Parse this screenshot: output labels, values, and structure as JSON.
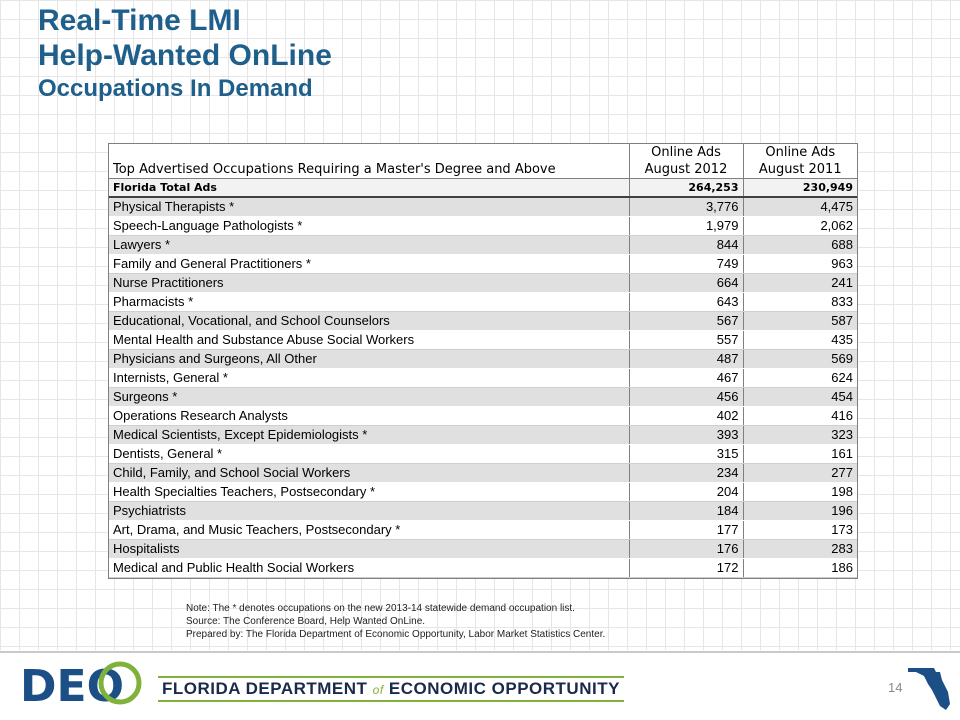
{
  "titles": {
    "line1": "Real-Time LMI",
    "line2": "Help-Wanted OnLine",
    "line3": "Occupations In Demand"
  },
  "table": {
    "header_label": "Top Advertised Occupations Requiring a Master's Degree and Above",
    "col2_line1": "Online Ads",
    "col2_line2": "August 2012",
    "col3_line1": "Online Ads",
    "col3_line2": "August 2011",
    "total": {
      "label": "Florida Total Ads",
      "v2012": "264,253",
      "v2011": "230,949"
    },
    "rows": [
      {
        "occupation": "Physical Therapists *",
        "v2012": "3,776",
        "v2011": "4,475"
      },
      {
        "occupation": "Speech-Language Pathologists *",
        "v2012": "1,979",
        "v2011": "2,062"
      },
      {
        "occupation": "Lawyers *",
        "v2012": "844",
        "v2011": "688"
      },
      {
        "occupation": "Family and General Practitioners *",
        "v2012": "749",
        "v2011": "963"
      },
      {
        "occupation": "Nurse Practitioners",
        "v2012": "664",
        "v2011": "241"
      },
      {
        "occupation": "Pharmacists *",
        "v2012": "643",
        "v2011": "833"
      },
      {
        "occupation": "Educational, Vocational, and School Counselors",
        "v2012": "567",
        "v2011": "587"
      },
      {
        "occupation": "Mental Health and Substance Abuse Social Workers",
        "v2012": "557",
        "v2011": "435"
      },
      {
        "occupation": "Physicians and Surgeons, All Other",
        "v2012": "487",
        "v2011": "569"
      },
      {
        "occupation": "Internists, General *",
        "v2012": "467",
        "v2011": "624"
      },
      {
        "occupation": "Surgeons *",
        "v2012": "456",
        "v2011": "454"
      },
      {
        "occupation": "Operations Research Analysts",
        "v2012": "402",
        "v2011": "416"
      },
      {
        "occupation": "Medical Scientists, Except Epidemiologists *",
        "v2012": "393",
        "v2011": "323"
      },
      {
        "occupation": "Dentists, General *",
        "v2012": "315",
        "v2011": "161"
      },
      {
        "occupation": "Child, Family, and School Social Workers",
        "v2012": "234",
        "v2011": "277"
      },
      {
        "occupation": "Health Specialties Teachers, Postsecondary *",
        "v2012": "204",
        "v2011": "198"
      },
      {
        "occupation": "Psychiatrists",
        "v2012": "184",
        "v2011": "196"
      },
      {
        "occupation": "Art, Drama, and Music Teachers, Postsecondary *",
        "v2012": "177",
        "v2011": "173"
      },
      {
        "occupation": "Hospitalists",
        "v2012": "176",
        "v2011": "283"
      },
      {
        "occupation": "Medical and Public Health Social Workers",
        "v2012": "172",
        "v2011": "186"
      }
    ]
  },
  "notes": {
    "note": "Note: The * denotes occupations on the new 2013-14 statewide demand occupation list.",
    "source": "Source:  The Conference Board, Help Wanted OnLine.",
    "prepared": "Prepared by:    The Florida Department of Economic Opportunity, Labor Market Statistics Center."
  },
  "footer": {
    "logo_text": "DEO",
    "agency_part1": "FLORIDA DEPARTMENT",
    "agency_of": "of",
    "agency_part2": "ECONOMIC OPPORTUNITY",
    "page_number": "14"
  },
  "colors": {
    "title": "#1f5f8b",
    "logo_blue": "#1b4f86",
    "logo_green": "#7fb23a"
  }
}
